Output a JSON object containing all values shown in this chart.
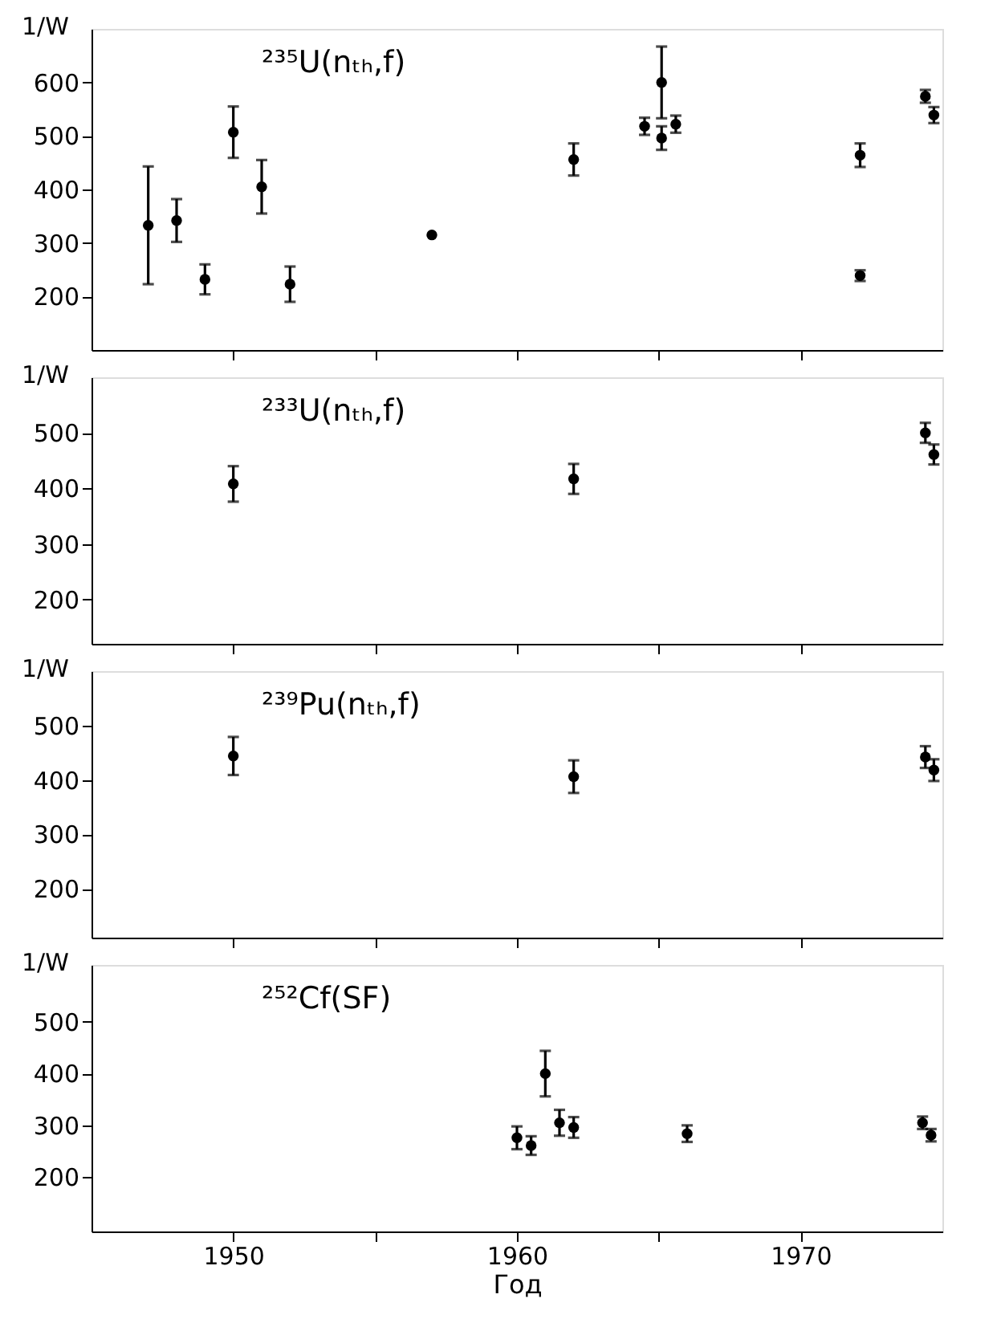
{
  "chart_data": [
    {
      "type": "scatter",
      "title": "²³⁵U(nₜₕ,f)",
      "ylabel": "1/W",
      "xlim": [
        1945,
        1975
      ],
      "ylim": [
        100,
        700
      ],
      "xticks": [
        {
          "value": 1950,
          "label": null
        },
        {
          "value": 1955,
          "label": null
        },
        {
          "value": 1960,
          "label": null
        },
        {
          "value": 1965,
          "label": null
        },
        {
          "value": 1970,
          "label": null
        }
      ],
      "yticks": [
        200,
        300,
        400,
        500,
        600
      ],
      "tick_labels": "y",
      "marker": "circle",
      "series": [
        {
          "color": "#000000",
          "x": [
            1947.0,
            1948.0,
            1949.0,
            1950.0,
            1951.0,
            1952.0,
            1957.0,
            1962.0,
            1964.5,
            1965.1,
            1965.1,
            1965.6,
            1972.1,
            1972.1,
            1974.4,
            1974.7
          ],
          "values": [
            333,
            342,
            232,
            507,
            405,
            223,
            315,
            456,
            518,
            600,
            496,
            522,
            464,
            239,
            574,
            539
          ],
          "errors": [
            110,
            40,
            28,
            48,
            50,
            33,
            null,
            30,
            16,
            67,
            22,
            16,
            22,
            10,
            12,
            15
          ]
        }
      ]
    },
    {
      "type": "scatter",
      "title": "²³³U(nₜₕ,f)",
      "ylabel": "1/W",
      "xlim": [
        1945,
        1975
      ],
      "ylim": [
        120,
        600
      ],
      "xticks": [
        {
          "value": 1950,
          "label": null
        },
        {
          "value": 1955,
          "label": null
        },
        {
          "value": 1960,
          "label": null
        },
        {
          "value": 1965,
          "label": null
        },
        {
          "value": 1970,
          "label": null
        }
      ],
      "yticks": [
        200,
        300,
        400,
        500
      ],
      "tick_labels": "y",
      "marker": "circle",
      "series": [
        {
          "color": "#000000",
          "x": [
            1950.0,
            1962.0,
            1974.4,
            1974.7
          ],
          "values": [
            408,
            417,
            500,
            461
          ],
          "errors": [
            32,
            27,
            18,
            18
          ]
        }
      ]
    },
    {
      "type": "scatter",
      "title": "²³⁹Pu(nₜₕ,f)",
      "ylabel": "1/W",
      "xlim": [
        1945,
        1975
      ],
      "ylim": [
        110,
        600
      ],
      "xticks": [
        {
          "value": 1950,
          "label": null
        },
        {
          "value": 1955,
          "label": null
        },
        {
          "value": 1960,
          "label": null
        },
        {
          "value": 1965,
          "label": null
        },
        {
          "value": 1970,
          "label": null
        }
      ],
      "yticks": [
        200,
        300,
        400,
        500
      ],
      "tick_labels": "y",
      "marker": "circle",
      "series": [
        {
          "color": "#000000",
          "x": [
            1950.0,
            1962.0,
            1974.4,
            1974.7
          ],
          "values": [
            444,
            406,
            442,
            418
          ],
          "errors": [
            35,
            30,
            20,
            20
          ]
        }
      ]
    },
    {
      "type": "scatter",
      "title": "²⁵²Cf(SF)",
      "xlabel": "Год",
      "ylabel": "1/W",
      "xlim": [
        1945,
        1975
      ],
      "ylim": [
        95,
        610
      ],
      "xticks": [
        1950,
        {
          "value": 1955,
          "label": null
        },
        1960,
        {
          "value": 1965,
          "label": null
        },
        1970
      ],
      "yticks": [
        200,
        300,
        400,
        500
      ],
      "marker": "circle",
      "series": [
        {
          "color": "#000000",
          "x": [
            1960.0,
            1960.5,
            1961.0,
            1961.5,
            1962.0,
            1966.0,
            1974.3,
            1974.6
          ],
          "values": [
            276,
            261,
            400,
            305,
            296,
            284,
            305,
            281
          ],
          "errors": [
            22,
            18,
            44,
            25,
            20,
            16,
            12,
            12
          ]
        }
      ]
    }
  ]
}
